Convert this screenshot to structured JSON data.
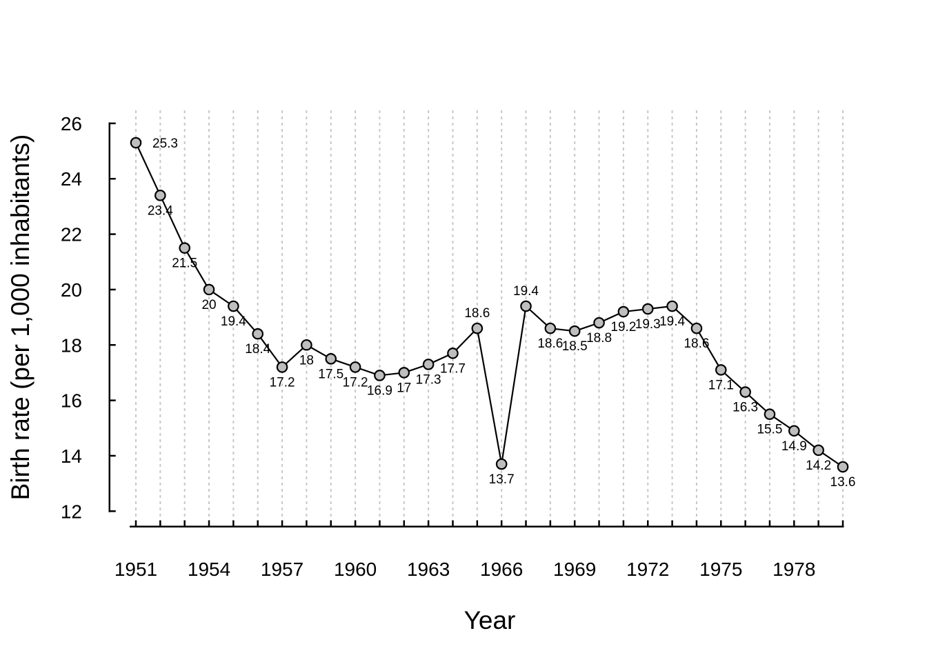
{
  "chart_data": {
    "type": "line",
    "title": "",
    "xlabel": "Year",
    "ylabel": "Birth rate (per 1,000 inhabitants)",
    "x": [
      1951,
      1952,
      1953,
      1954,
      1955,
      1956,
      1957,
      1958,
      1959,
      1960,
      1961,
      1962,
      1963,
      1964,
      1965,
      1966,
      1967,
      1968,
      1969,
      1970,
      1971,
      1972,
      1973,
      1974,
      1975,
      1976,
      1977,
      1978,
      1979,
      1980
    ],
    "values": [
      25.3,
      23.4,
      21.5,
      20,
      19.4,
      18.4,
      17.2,
      18,
      17.5,
      17.2,
      16.9,
      17,
      17.3,
      17.7,
      18.6,
      13.7,
      19.4,
      18.6,
      18.5,
      18.8,
      19.2,
      19.3,
      19.4,
      18.6,
      17.1,
      16.3,
      15.5,
      14.9,
      14.2,
      13.6
    ],
    "point_labels": [
      "25.3",
      "23.4",
      "21.5",
      "20",
      "19.4",
      "18.4",
      "17.2",
      "18",
      "17.5",
      "17.2",
      "16.9",
      "17",
      "17.3",
      "17.7",
      "18.6",
      "13.7",
      "19.4",
      "18.6",
      "18.5",
      "18.8",
      "19.2",
      "19.3",
      "19.4",
      "18.6",
      "17.1",
      "16.3",
      "15.5",
      "14.9",
      "14.2",
      "13.6"
    ],
    "label_positions": [
      "right",
      "below",
      "below",
      "below",
      "below",
      "below",
      "below",
      "below",
      "below",
      "below",
      "below",
      "below",
      "below",
      "below",
      "above",
      "below",
      "above",
      "below",
      "below",
      "below",
      "below",
      "below",
      "below",
      "below",
      "below",
      "below",
      "below",
      "below",
      "below",
      "below"
    ],
    "ylim": [
      12,
      26
    ],
    "yticks": [
      12,
      14,
      16,
      18,
      20,
      22,
      24,
      26
    ],
    "ytick_labels": [
      "12",
      "14",
      "16",
      "18",
      "20",
      "22",
      "24",
      "26"
    ],
    "xticks_every_year": true,
    "xtick_labeled_years": [
      1951,
      1954,
      1957,
      1960,
      1963,
      1966,
      1969,
      1972,
      1975,
      1978
    ],
    "xtick_labels": [
      "1951",
      "1954",
      "1957",
      "1960",
      "1963",
      "1966",
      "1969",
      "1972",
      "1975",
      "1978"
    ],
    "grid": "vertical dashed gridline at each year",
    "legend": "none",
    "marker": "filled circle",
    "colors": {
      "line": "#000000",
      "marker_fill": "#bebebe",
      "marker_stroke": "#000000",
      "gridline": "#c6c6c6",
      "axis": "#000000",
      "text": "#000000",
      "background": "#ffffff"
    }
  }
}
